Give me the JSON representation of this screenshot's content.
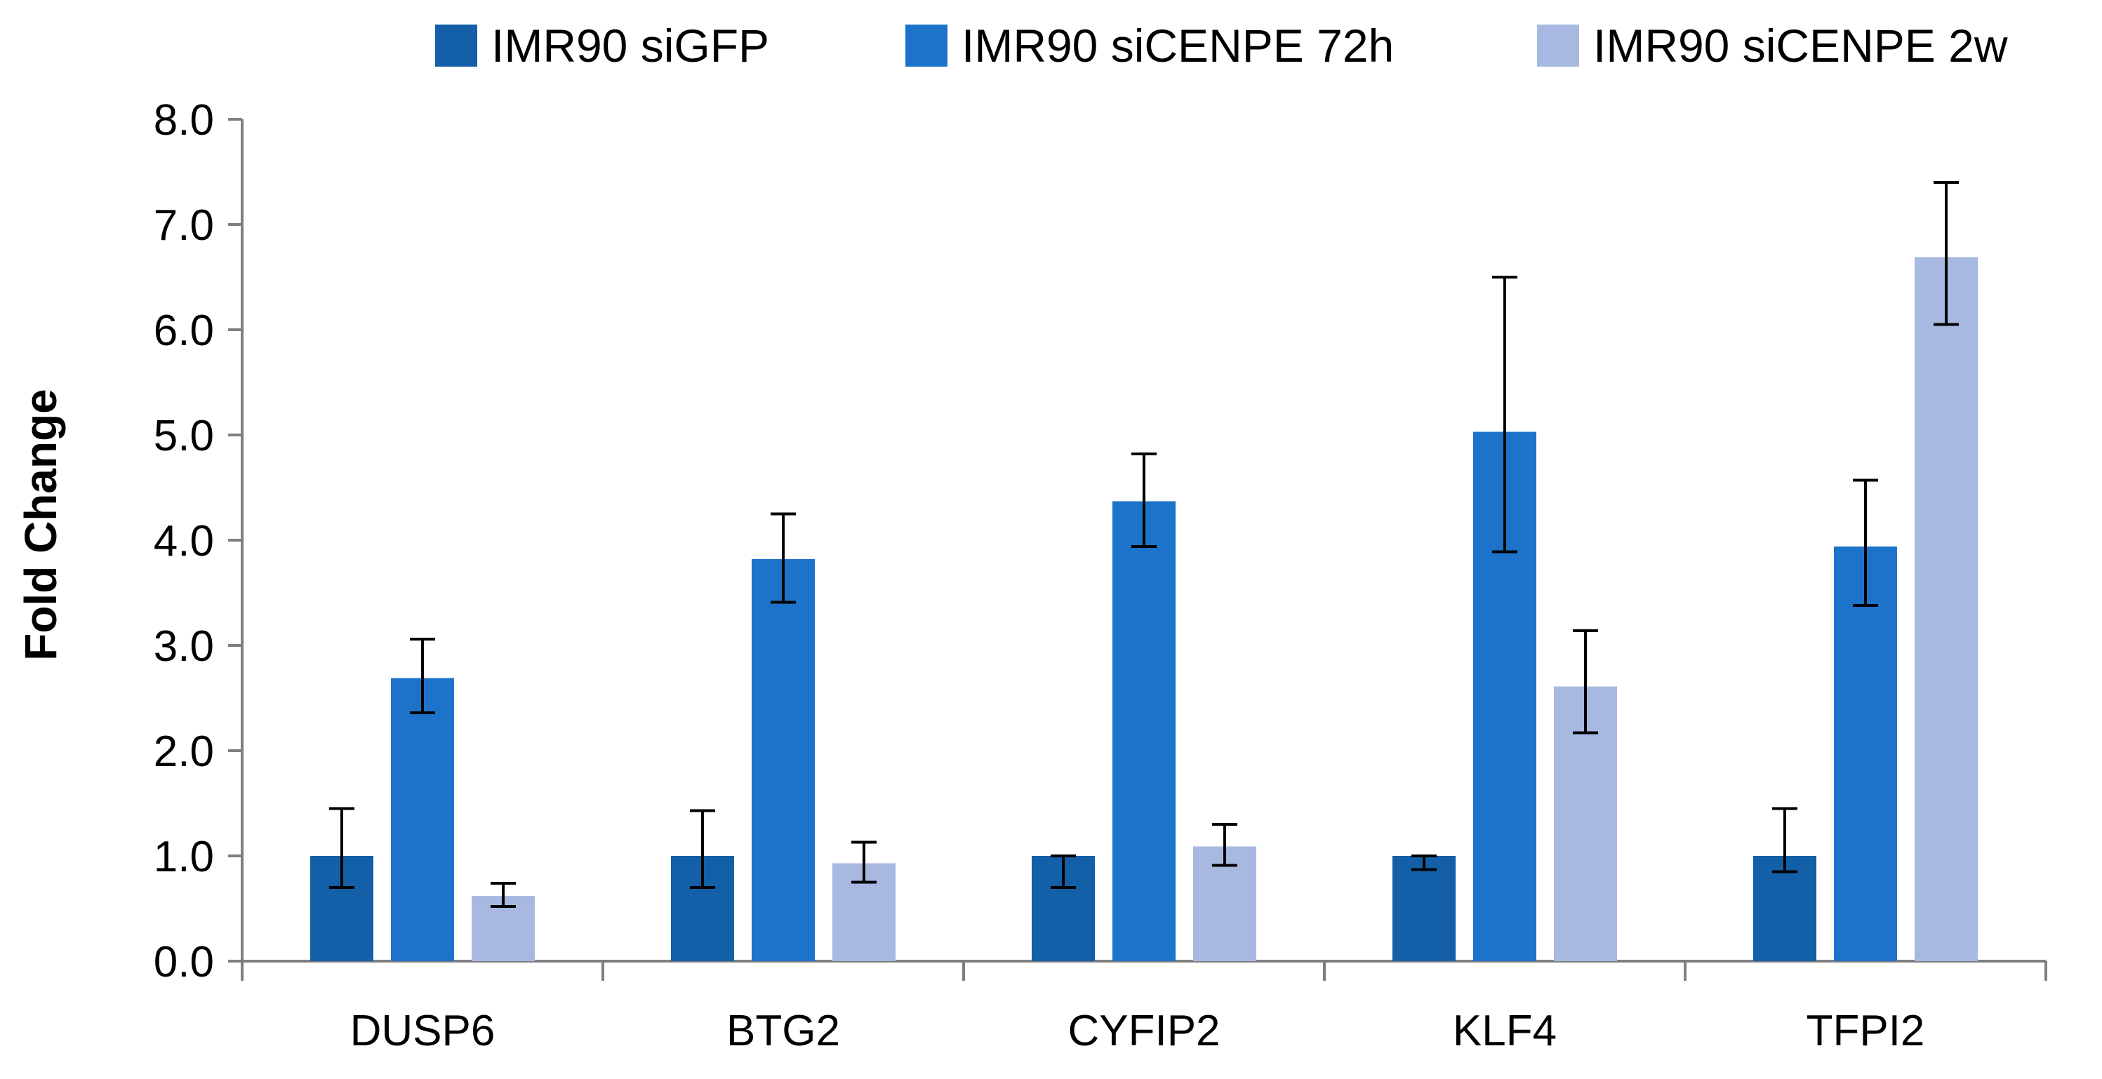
{
  "chart_data": {
    "type": "bar",
    "title": "",
    "xlabel": "",
    "ylabel": "Fold Change",
    "ylim": [
      0,
      8
    ],
    "yticks": [
      "0.0",
      "1.0",
      "2.0",
      "3.0",
      "4.0",
      "5.0",
      "6.0",
      "7.0",
      "8.0"
    ],
    "categories": [
      "DUSP6",
      "BTG2",
      "CYFIP2",
      "KLF4",
      "TFPI2"
    ],
    "legend_position": "top",
    "series": [
      {
        "name": "IMR90 siGFP",
        "color": "#135fa8",
        "values": [
          1.0,
          1.0,
          1.0,
          1.0,
          1.0
        ],
        "err_low": [
          0.7,
          0.7,
          0.7,
          0.87,
          0.85
        ],
        "err_high": [
          1.45,
          1.43,
          1.0,
          1.0,
          1.45
        ]
      },
      {
        "name": "IMR90 siCENPE 72h",
        "color": "#1d73c9",
        "values": [
          2.69,
          3.82,
          4.37,
          5.03,
          3.94
        ],
        "err_low": [
          2.36,
          3.41,
          3.94,
          3.89,
          3.38
        ],
        "err_high": [
          3.06,
          4.25,
          4.82,
          6.5,
          4.57
        ]
      },
      {
        "name": "IMR90 siCENPE 2w",
        "color": "#a7b9e0",
        "values": [
          0.62,
          0.93,
          1.09,
          2.61,
          6.69
        ],
        "err_low": [
          0.52,
          0.75,
          0.91,
          2.17,
          6.05
        ],
        "err_high": [
          0.74,
          1.13,
          1.3,
          3.14,
          7.4
        ]
      }
    ]
  }
}
